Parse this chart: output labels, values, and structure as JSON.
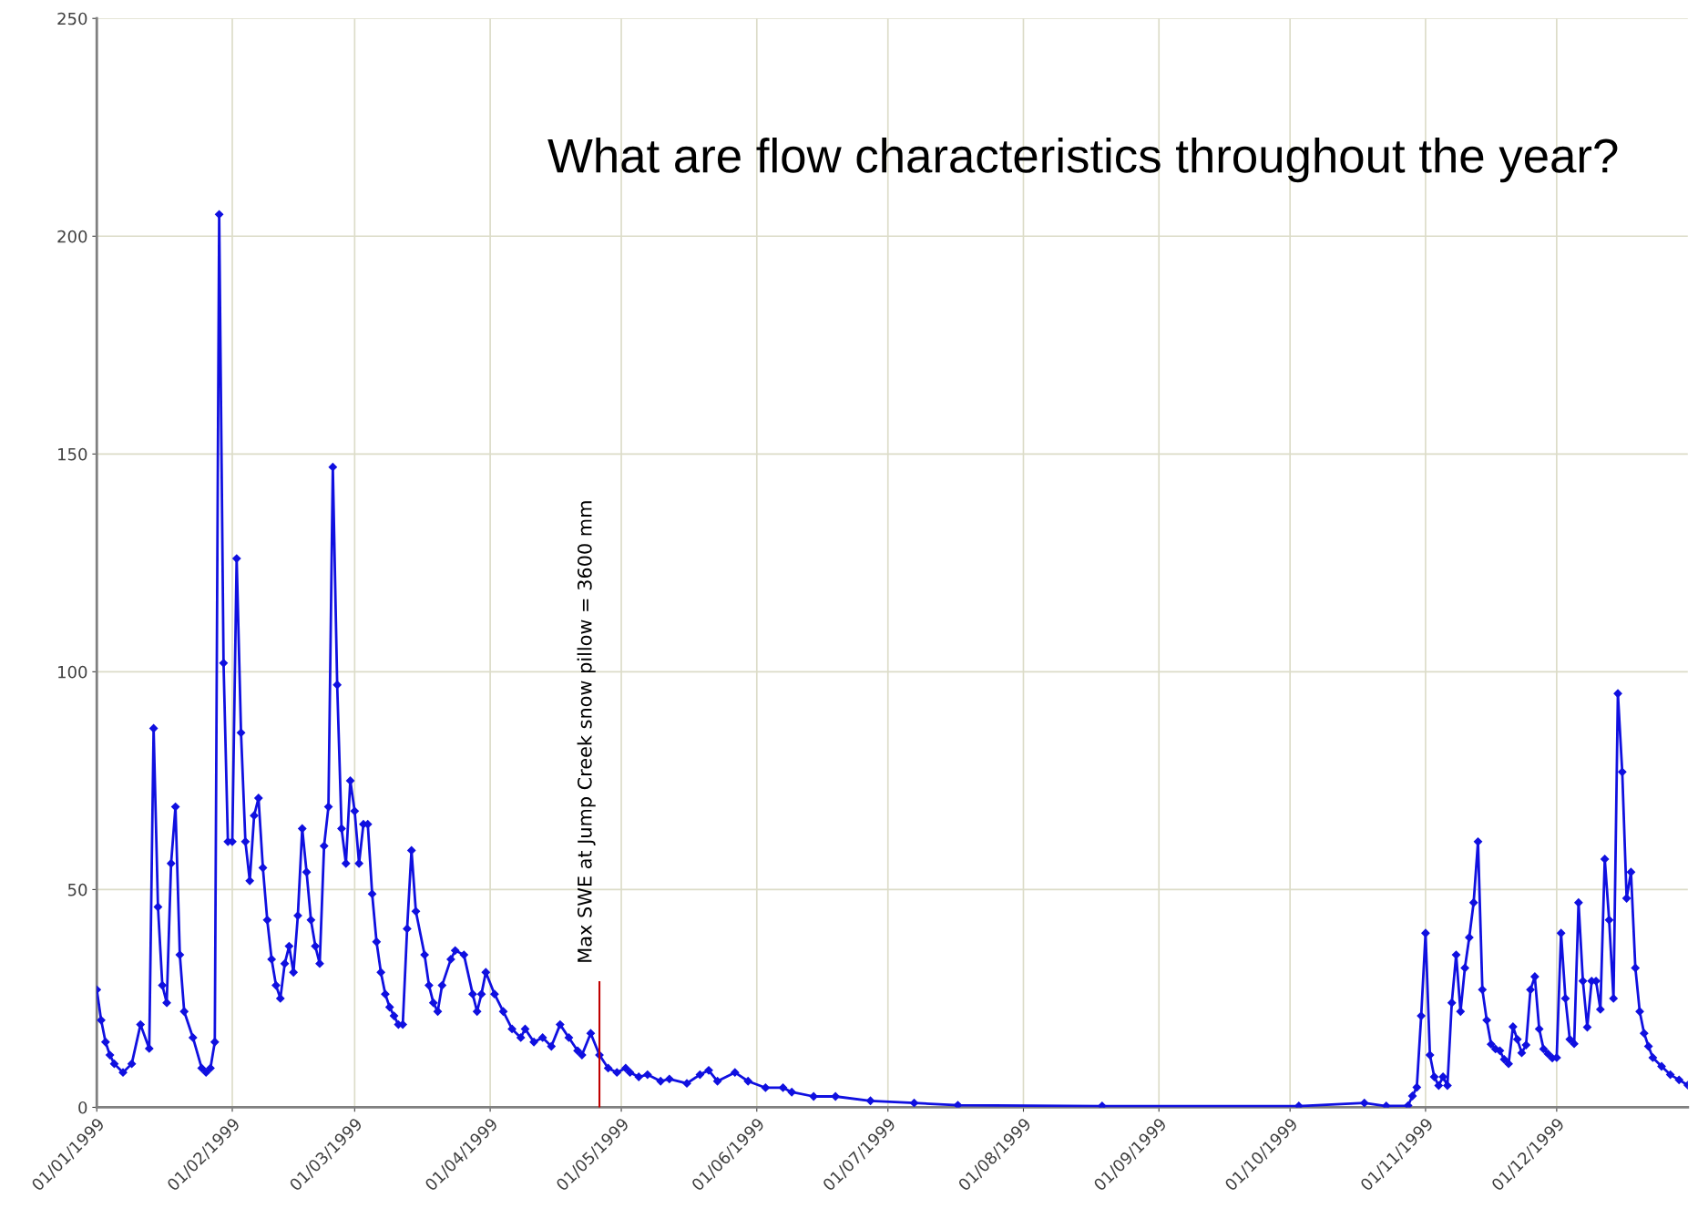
{
  "chart_data": {
    "type": "line",
    "title": "What are flow characteristics throughout the year?",
    "xlim": [
      "1999-01-01",
      "1999-12-31"
    ],
    "xticks": [
      {
        "value": "1999-01-01",
        "label": "01/01/1999"
      },
      {
        "value": "1999-02-01",
        "label": "01/02/1999"
      },
      {
        "value": "1999-03-01",
        "label": "01/03/1999"
      },
      {
        "value": "1999-04-01",
        "label": "01/04/1999"
      },
      {
        "value": "1999-05-01",
        "label": "01/05/1999"
      },
      {
        "value": "1999-06-01",
        "label": "01/06/1999"
      },
      {
        "value": "1999-07-01",
        "label": "01/07/1999"
      },
      {
        "value": "1999-08-01",
        "label": "01/08/1999"
      },
      {
        "value": "1999-09-01",
        "label": "01/09/1999"
      },
      {
        "value": "1999-10-01",
        "label": "01/10/1999"
      },
      {
        "value": "1999-11-01",
        "label": "01/11/1999"
      },
      {
        "value": "1999-12-01",
        "label": "01/12/1999"
      }
    ],
    "ylim": [
      0,
      250
    ],
    "yticks": [
      0,
      50,
      100,
      150,
      200,
      250
    ],
    "grid": true,
    "marker": "diamond",
    "line_style": "solid",
    "legend": false,
    "ref_lines": [
      {
        "axis": "x",
        "value": "1999-04-26",
        "label": "Max SWE at Jump Creek snow pillow = 3600 mm",
        "color": "#c00000"
      }
    ],
    "series": [
      {
        "color": "#1010e0",
        "x": [
          "1999-01-01",
          "1999-01-02",
          "1999-01-03",
          "1999-01-04",
          "1999-01-05",
          "1999-01-07",
          "1999-01-09",
          "1999-01-11",
          "1999-01-13",
          "1999-01-14",
          "1999-01-15",
          "1999-01-16",
          "1999-01-17",
          "1999-01-18",
          "1999-01-19",
          "1999-01-20",
          "1999-01-21",
          "1999-01-23",
          "1999-01-25",
          "1999-01-26",
          "1999-01-27",
          "1999-01-28",
          "1999-01-29",
          "1999-01-30",
          "1999-01-31",
          "1999-02-01",
          "1999-02-02",
          "1999-02-03",
          "1999-02-04",
          "1999-02-05",
          "1999-02-06",
          "1999-02-07",
          "1999-02-08",
          "1999-02-09",
          "1999-02-10",
          "1999-02-11",
          "1999-02-12",
          "1999-02-13",
          "1999-02-14",
          "1999-02-15",
          "1999-02-16",
          "1999-02-17",
          "1999-02-18",
          "1999-02-19",
          "1999-02-20",
          "1999-02-21",
          "1999-02-22",
          "1999-02-23",
          "1999-02-24",
          "1999-02-25",
          "1999-02-26",
          "1999-02-27",
          "1999-02-28",
          "1999-03-01",
          "1999-03-02",
          "1999-03-03",
          "1999-03-04",
          "1999-03-05",
          "1999-03-06",
          "1999-03-07",
          "1999-03-08",
          "1999-03-09",
          "1999-03-10",
          "1999-03-11",
          "1999-03-12",
          "1999-03-13",
          "1999-03-14",
          "1999-03-15",
          "1999-03-17",
          "1999-03-18",
          "1999-03-19",
          "1999-03-20",
          "1999-03-21",
          "1999-03-23",
          "1999-03-24",
          "1999-03-26",
          "1999-03-28",
          "1999-03-29",
          "1999-03-30",
          "1999-03-31",
          "1999-04-02",
          "1999-04-04",
          "1999-04-06",
          "1999-04-08",
          "1999-04-09",
          "1999-04-11",
          "1999-04-13",
          "1999-04-15",
          "1999-04-17",
          "1999-04-19",
          "1999-04-21",
          "1999-04-22",
          "1999-04-24",
          "1999-04-26",
          "1999-04-28",
          "1999-04-30",
          "1999-05-02",
          "1999-05-03",
          "1999-05-05",
          "1999-05-07",
          "1999-05-10",
          "1999-05-12",
          "1999-05-16",
          "1999-05-19",
          "1999-05-21",
          "1999-05-23",
          "1999-05-27",
          "1999-05-30",
          "1999-06-03",
          "1999-06-07",
          "1999-06-09",
          "1999-06-14",
          "1999-06-19",
          "1999-06-27",
          "1999-07-07",
          "1999-07-17",
          "1999-08-19",
          "1999-10-03",
          "1999-10-18",
          "1999-10-23",
          "1999-10-28",
          "1999-10-29",
          "1999-10-30",
          "1999-10-31",
          "1999-11-01",
          "1999-11-02",
          "1999-11-03",
          "1999-11-04",
          "1999-11-05",
          "1999-11-06",
          "1999-11-07",
          "1999-11-08",
          "1999-11-09",
          "1999-11-10",
          "1999-11-11",
          "1999-11-12",
          "1999-11-13",
          "1999-11-14",
          "1999-11-15",
          "1999-11-16",
          "1999-11-17",
          "1999-11-18",
          "1999-11-19",
          "1999-11-20",
          "1999-11-21",
          "1999-11-22",
          "1999-11-23",
          "1999-11-24",
          "1999-11-25",
          "1999-11-26",
          "1999-11-27",
          "1999-11-28",
          "1999-11-29",
          "1999-11-30",
          "1999-12-01",
          "1999-12-02",
          "1999-12-03",
          "1999-12-04",
          "1999-12-05",
          "1999-12-06",
          "1999-12-07",
          "1999-12-08",
          "1999-12-09",
          "1999-12-10",
          "1999-12-11",
          "1999-12-12",
          "1999-12-13",
          "1999-12-14",
          "1999-12-15",
          "1999-12-16",
          "1999-12-17",
          "1999-12-18",
          "1999-12-19",
          "1999-12-20",
          "1999-12-21",
          "1999-12-22",
          "1999-12-23",
          "1999-12-25",
          "1999-12-27",
          "1999-12-29",
          "1999-12-31"
        ],
        "values": [
          27,
          20,
          15,
          12,
          10,
          8,
          10,
          19,
          13.5,
          87,
          46,
          28,
          24,
          56,
          69,
          35,
          22,
          16,
          9,
          8,
          9,
          15,
          205,
          102,
          61,
          61,
          126,
          86,
          61,
          52,
          67,
          71,
          55,
          43,
          34,
          28,
          25,
          33,
          37,
          31,
          44,
          64,
          54,
          43,
          37,
          33,
          60,
          69,
          147,
          97,
          64,
          56,
          75,
          68,
          56,
          65,
          65,
          49,
          38,
          31,
          26,
          23,
          21,
          19,
          19,
          41,
          59,
          45,
          35,
          28,
          24,
          22,
          28,
          34,
          36,
          35,
          26,
          22,
          26,
          31,
          26,
          22,
          18,
          16,
          18,
          15,
          16,
          14,
          19,
          16,
          13,
          12,
          17,
          12,
          9,
          8,
          9,
          8,
          7,
          7.5,
          6,
          6.5,
          5.5,
          7.5,
          8.5,
          6,
          8,
          6,
          4.5,
          4.5,
          3.5,
          2.5,
          2.5,
          1.5,
          1,
          0.5,
          0.3,
          0.3,
          1,
          0.3,
          0.4,
          2.6,
          4.6,
          21,
          40,
          12,
          7,
          5,
          7,
          5,
          24,
          35,
          22,
          32,
          39,
          47,
          61,
          27,
          20,
          14.5,
          13.4,
          13,
          11,
          10,
          18.5,
          15.6,
          12.5,
          14.3,
          27,
          30,
          18,
          13.4,
          12.3,
          11.3,
          11.4,
          40,
          25,
          15.6,
          14.6,
          47,
          29,
          18.4,
          29,
          29,
          22.5,
          57,
          43,
          25,
          95,
          77,
          48,
          54,
          32,
          22,
          17,
          14,
          11.4,
          9.4,
          7.5,
          6.3,
          5.1
        ]
      }
    ]
  }
}
